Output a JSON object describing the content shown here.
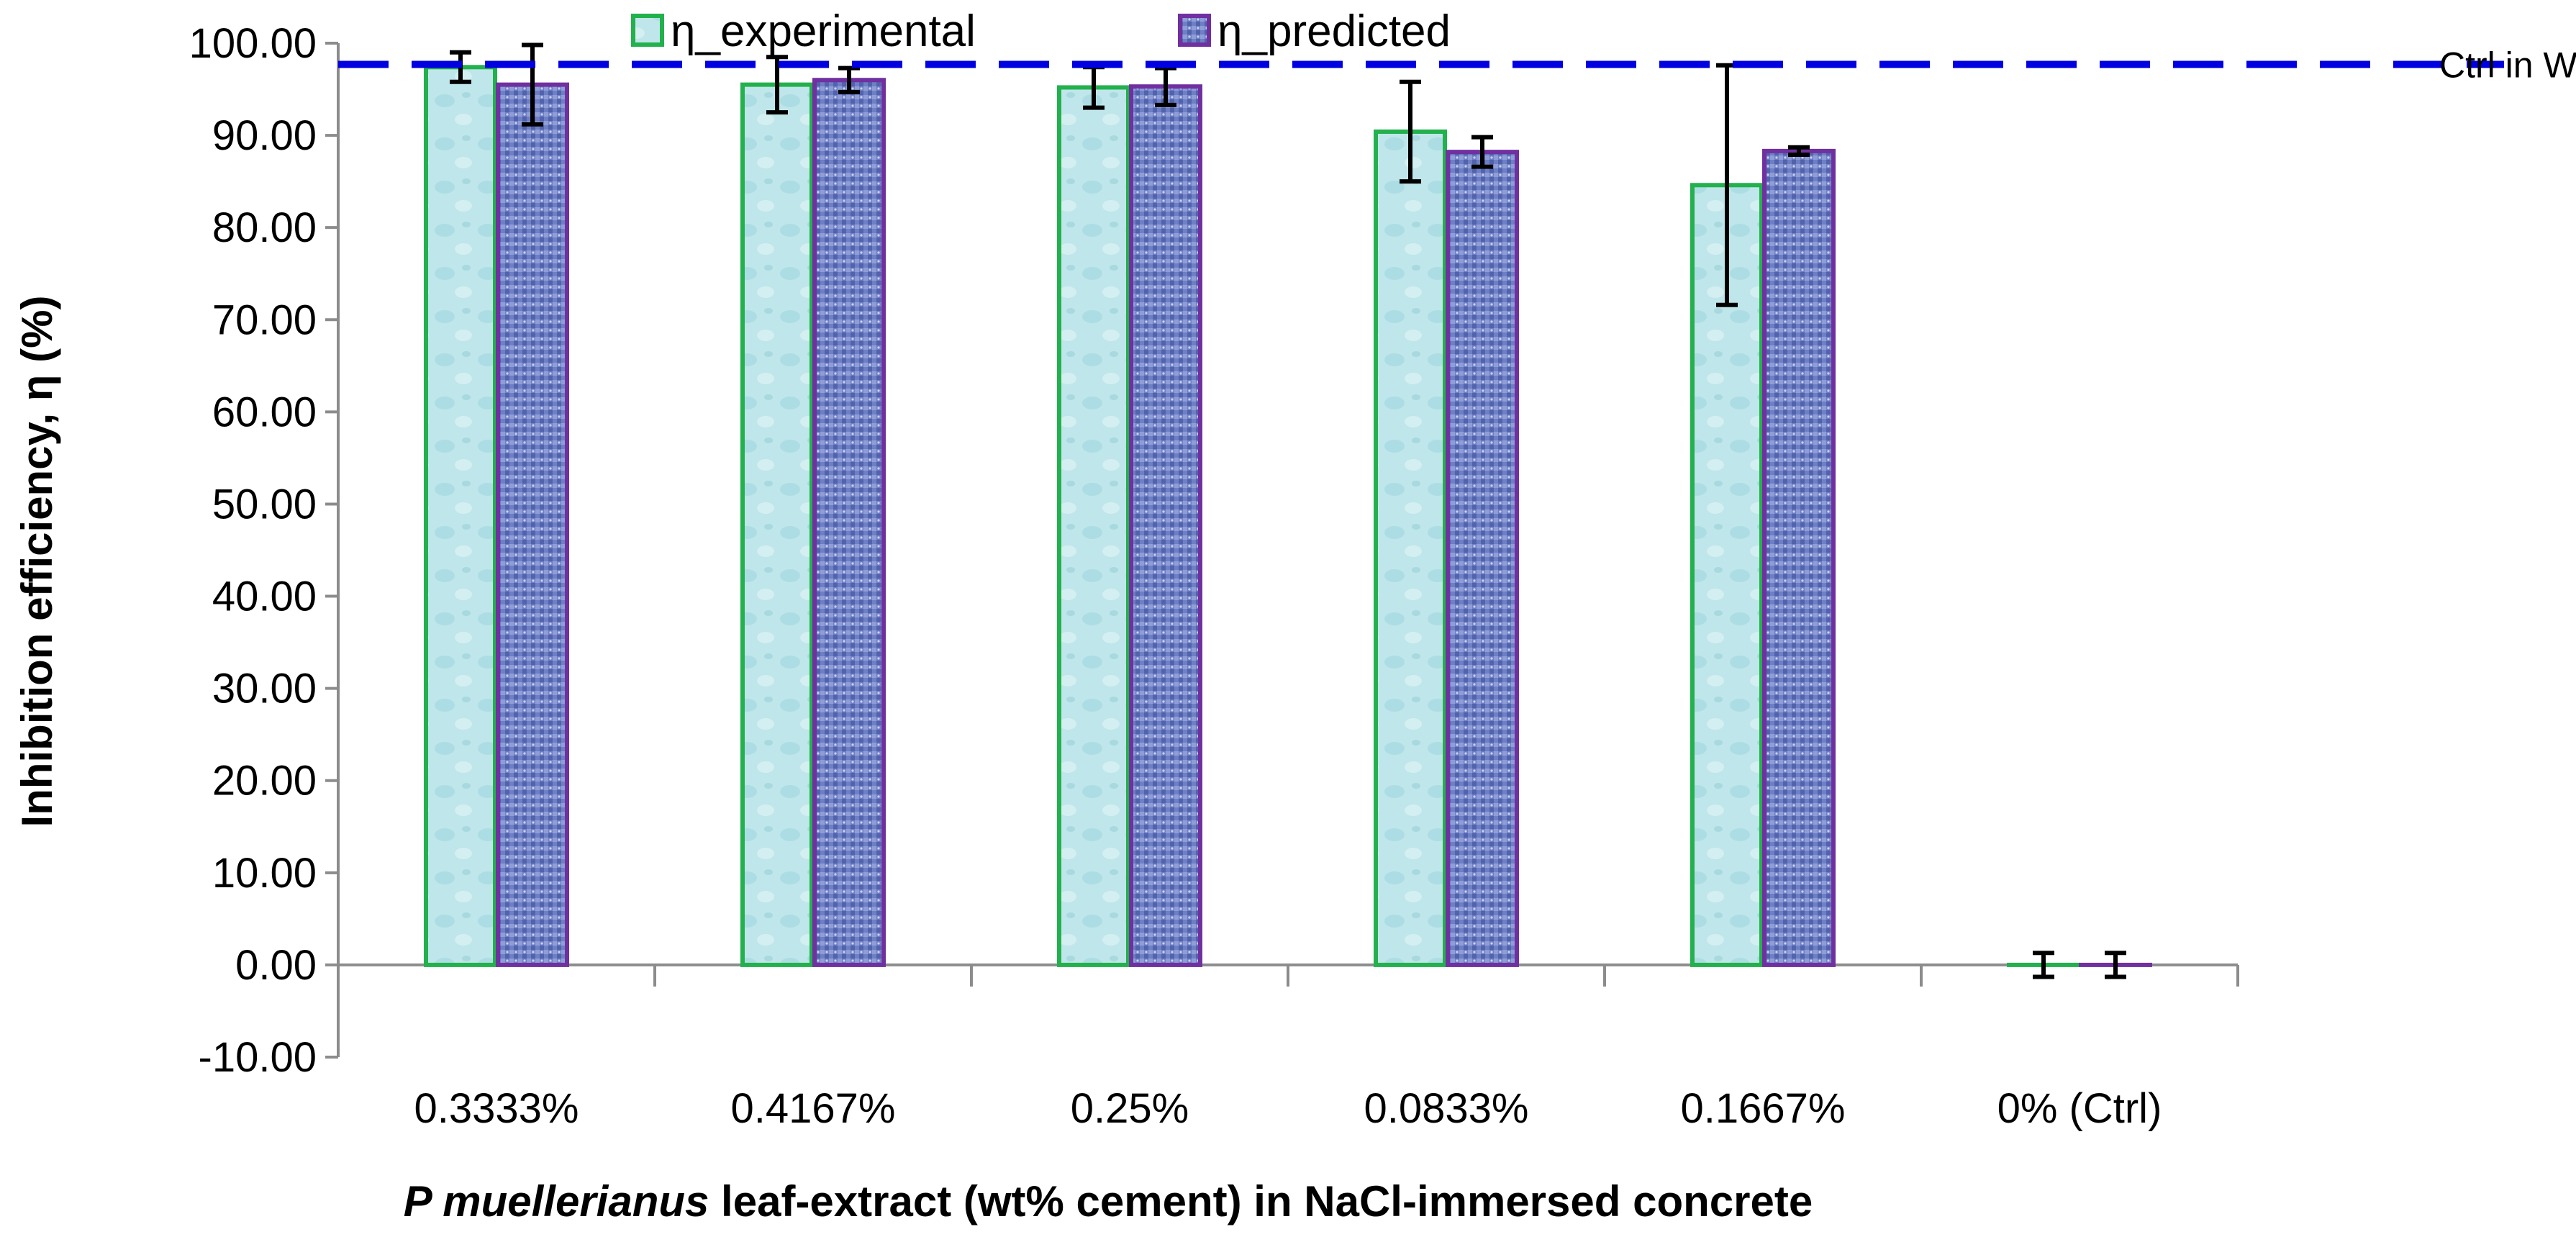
{
  "chart_data": {
    "type": "bar",
    "categories": [
      "0.3333%",
      "0.4167%",
      "0.25%",
      "0.0833%",
      "0.1667%",
      "0% (Ctrl)"
    ],
    "series": [
      {
        "name": "η_experimental",
        "values": [
          97.4,
          95.5,
          95.2,
          90.4,
          84.6,
          0
        ],
        "errors": [
          1.6,
          3.0,
          2.2,
          5.4,
          13.0,
          1.3
        ],
        "color": "#22b14c",
        "fill": "#bfe6ea"
      },
      {
        "name": "η_predicted",
        "values": [
          95.5,
          96.0,
          95.3,
          88.2,
          88.3,
          0
        ],
        "errors": [
          4.3,
          1.3,
          2.0,
          1.6,
          0.4,
          1.3
        ],
        "color": "#7030a0",
        "fill": "#6f7fc4"
      }
    ],
    "reference_line": {
      "label": "Ctrl in Water",
      "value": 97.7,
      "color": "#0000e0"
    },
    "ytick_labels": [
      "-10.00",
      "0.00",
      "10.00",
      "20.00",
      "30.00",
      "40.00",
      "50.00",
      "60.00",
      "70.00",
      "80.00",
      "90.00",
      "100.00"
    ],
    "ylim": [
      -10,
      100
    ],
    "ylabel": "Inhibition efficiency, η (%)",
    "xlabel_italic": "P muellerianus",
    "xlabel_rest": " leaf-extract (wt% cement) in NaCl-immersed concrete",
    "legend_position": "top",
    "grid": false
  }
}
